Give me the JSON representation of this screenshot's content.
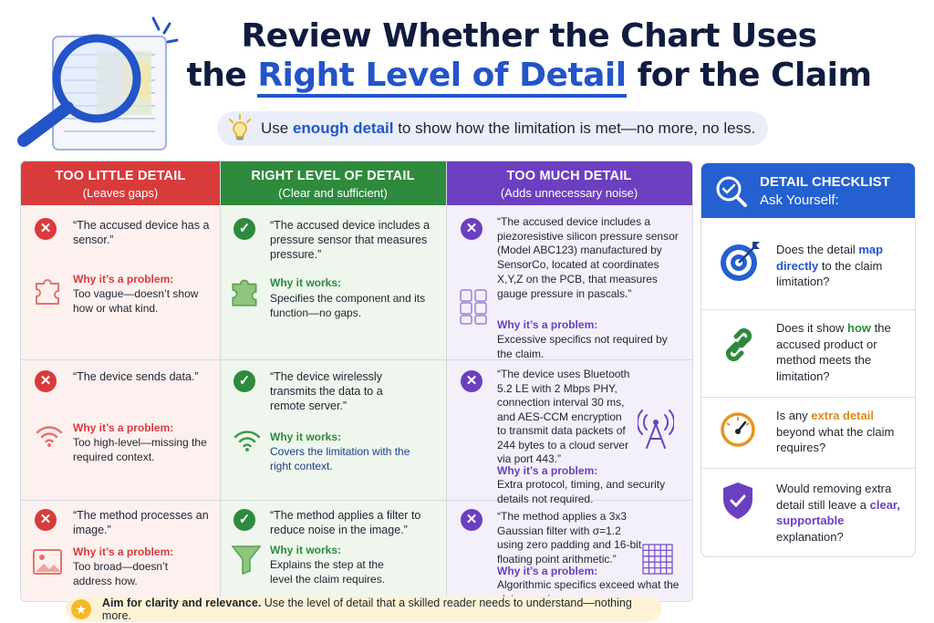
{
  "header": {
    "title_line1": "Review Whether the Chart Uses",
    "title_line2_pre": "the ",
    "title_line2_highlight": "Right Level of Detail",
    "title_line2_post": " for the Claim",
    "subtitle_pre": "Use ",
    "subtitle_highlight": "enough detail",
    "subtitle_post": " to show how the limitation is met—no more, no less."
  },
  "columns": [
    {
      "title": "TOO LITTLE DETAIL",
      "subtitle": "(Leaves gaps)",
      "color": "#d83b3b"
    },
    {
      "title": "RIGHT LEVEL OF DETAIL",
      "subtitle": "(Clear and sufficient)",
      "color": "#2e8a3c"
    },
    {
      "title": "TOO MUCH DETAIL",
      "subtitle": "(Adds unnecessary noise)",
      "color": "#6c3fc0"
    }
  ],
  "rows": [
    {
      "too_little": {
        "quote": "“The accused device has a sensor.”",
        "why": "Why it’s a problem:",
        "explain": "Too vague—doesn’t show how or what kind.",
        "icon": "puzzle-icon"
      },
      "right": {
        "quote": "“The accused device includes a pressure sensor that measures pressure.”",
        "why": "Why it works:",
        "explain": "Specifies the component and its function—no gaps.",
        "icon": "puzzle-icon"
      },
      "too_much": {
        "quote": "“The accused device includes a piezoresistive silicon pressure sensor (Model ABC123) manufactured by SensorCo, located at coordinates X,Y,Z on the PCB, that measures gauge pressure in pascals.”",
        "why": "Why it’s a problem:",
        "explain": "Excessive specifics not required by the claim.",
        "icon": "puzzle-grid-icon"
      }
    },
    {
      "too_little": {
        "quote": "“The device sends data.”",
        "why": "Why it’s a problem:",
        "explain": "Too high-level—missing the required context.",
        "icon": "wifi-icon"
      },
      "right": {
        "quote": "“The device wirelessly transmits the data to a remote server.”",
        "why": "Why it works:",
        "explain": "Covers the limitation with the right context.",
        "icon": "wifi-icon"
      },
      "too_much": {
        "quote": "“The device uses Bluetooth 5.2 LE with 2 Mbps PHY, connection interval 30 ms, and AES-CCM encryption to transmit data packets of 244 bytes to a cloud server via port 443.”",
        "why": "Why it’s a problem:",
        "explain": "Extra protocol, timing, and security details not required.",
        "icon": "antenna-icon"
      }
    },
    {
      "too_little": {
        "quote": "“The method processes an image.”",
        "why": "Why it’s a problem:",
        "explain": "Too broad—doesn’t address how.",
        "icon": "image-icon"
      },
      "right": {
        "quote": "“The method applies a filter to reduce noise in the image.”",
        "why": "Why it works:",
        "explain": "Explains the step at the level the claim requires.",
        "icon": "funnel-icon"
      },
      "too_much": {
        "quote": "“The method applies a 3x3 Gaussian filter with σ=1.2 using zero padding and 16-bit floating point arithmetic.”",
        "why": "Why it’s a problem:",
        "explain": "Algorithmic specifics exceed what the claim requires.",
        "icon": "grid-icon"
      }
    }
  ],
  "checklist": {
    "title": "DETAIL CHECKLIST",
    "subtitle": "Ask Yourself:",
    "items": [
      {
        "pre": "Does the detail ",
        "hl": "map directly",
        "post": " to the claim limitation?",
        "icon": "target-icon"
      },
      {
        "pre": "Does it show ",
        "hl": "how",
        "post": " the accused product or method meets the limitation?",
        "icon": "chain-link-icon"
      },
      {
        "pre": "Is any ",
        "hl": "extra detail",
        "post": " beyond what the claim requires?",
        "icon": "gauge-icon"
      },
      {
        "pre": "Would removing extra detail still leave a ",
        "hl": "clear, supportable",
        "post": " explanation?",
        "icon": "shield-check-icon"
      }
    ]
  },
  "footer": {
    "bold": "Aim for clarity and relevance.",
    "rest": " Use the level of detail that a skilled reader needs to understand—nothing more."
  }
}
